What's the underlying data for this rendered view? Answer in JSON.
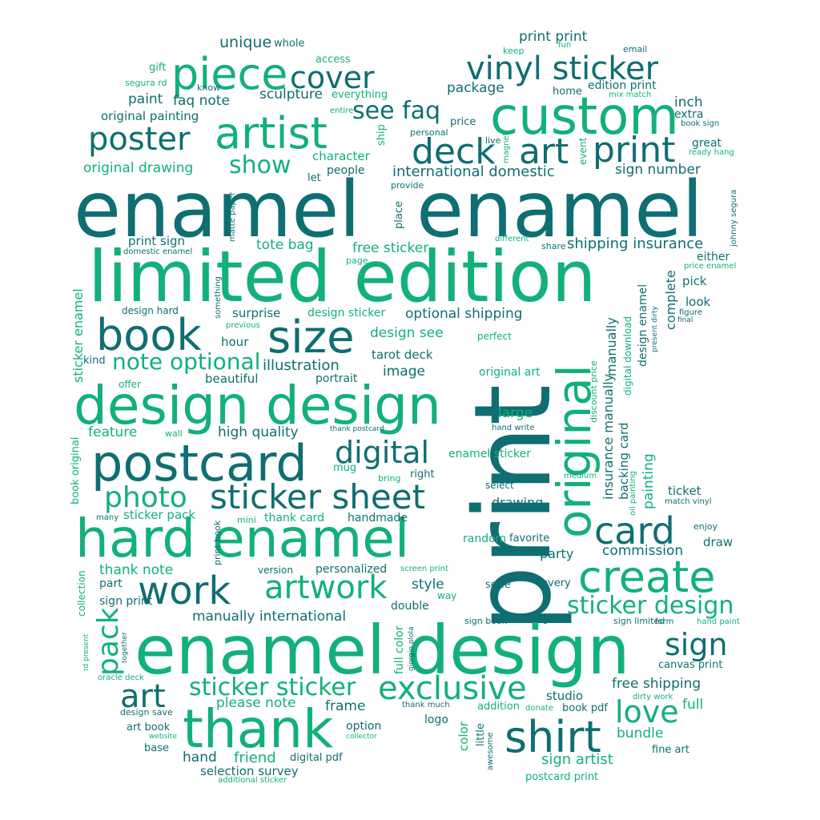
{
  "words": {
    "enamel_1": "enamel",
    "enamel_2": "enamel",
    "limited_edition": "limited edition",
    "print_big": "print",
    "enamel_design": "enamel design",
    "design_design": "design design",
    "hard_enamel": "hard enamel",
    "postcard": "postcard",
    "custom": "custom",
    "original": "original",
    "thank": "thank",
    "artist": "artist",
    "piece": "piece",
    "create": "create",
    "shirt": "shirt",
    "size": "size",
    "book": "book",
    "work": "work",
    "vinyl_sticker": "vinyl sticker",
    "print_2": "print",
    "deck": "deck",
    "art_1": "art",
    "cover": "cover",
    "poster": "poster",
    "card": "card",
    "exclusive": "exclusive",
    "sticker_sheet": "sticker sheet",
    "artwork": "artwork",
    "digital": "digital",
    "photo": "photo",
    "sticker_design": "sticker design",
    "sticker_sticker": "sticker sticker",
    "art_2": "art",
    "love": "love",
    "sign": "sign",
    "pack": "pack",
    "note_optional": "note optional",
    "see_faq": "see faq",
    "show": "show",
    "print_print": "print print",
    "unique": "unique",
    "whole": "whole",
    "gift": "gift",
    "access": "access",
    "keep": "keep",
    "fun": "fun",
    "email": "email",
    "segura_rd": "segura rd",
    "know": "know",
    "paint": "paint",
    "faq_note": "faq note",
    "sculpture": "sculpture",
    "everything": "everything",
    "package": "package",
    "home": "home",
    "edition_print": "edition print",
    "mix_match": "mix match",
    "inch": "inch",
    "extra": "extra",
    "book_sign": "book sign",
    "original_painting": "original painting",
    "entire": "entire",
    "personal": "personal",
    "price": "price",
    "ship": "ship",
    "live": "live",
    "magnet": "magnet",
    "event": "event",
    "great": "great",
    "ready_hang": "ready hang",
    "character": "character",
    "original_drawing": "original drawing",
    "let": "let",
    "people": "people",
    "international_domestic": "international domestic",
    "sign_number": "sign number",
    "provide": "provide",
    "matte_paper": "matte paper",
    "place": "place",
    "johnny_segura": "johnny segura",
    "print_sign": "print sign",
    "domestic_enamel": "domestic enamel",
    "tote_bag": "tote bag",
    "free_sticker": "free sticker",
    "different": "different",
    "share": "share",
    "shipping_insurance": "shipping insurance",
    "either": "either",
    "price_enamel": "price enamel",
    "page": "page",
    "sticker_enamel": "sticker enamel",
    "something": "something",
    "complete": "complete",
    "pick": "pick",
    "design_hard": "design hard",
    "surprise": "surprise",
    "design_sticker": "design sticker",
    "optional_shipping": "optional shipping",
    "look": "look",
    "figure": "figure",
    "final": "final",
    "previous": "previous",
    "present_dirty": "present dirty",
    "design_see": "design see",
    "perfect": "perfect",
    "kind": "kind",
    "hour": "hour",
    "illustration": "illustration",
    "tarot_deck": "tarot deck",
    "design_enamel": "design enamel",
    "manually": "manually",
    "digital_download": "digital download",
    "beautiful": "beautiful",
    "portrait": "portrait",
    "image": "image",
    "original_art": "original art",
    "offer": "offer",
    "discount_price": "discount price",
    "large": "large",
    "insurance_manually": "insurance manually",
    "feature": "feature",
    "wall": "wall",
    "high_quality": "high quality",
    "thank_postcard": "thank postcard",
    "hand_write": "hand write",
    "backing_card": "backing card",
    "book_original": "book original",
    "mug": "mug",
    "enamel_sticker": "enamel sticker",
    "medium": "medium",
    "bring": "bring",
    "right": "right",
    "select": "select",
    "painting": "painting",
    "oil_painting": "oil painting",
    "ticket": "ticket",
    "match_vinyl": "match vinyl",
    "many": "many",
    "sticker_pack": "sticker pack",
    "drawing": "drawing",
    "print_book": "print book",
    "mini": "mini",
    "thank_card": "thank card",
    "handmade": "handmade",
    "enjoy": "enjoy",
    "random": "random",
    "favorite": "favorite",
    "draw": "draw",
    "party": "party",
    "commission": "commission",
    "thank_note": "thank note",
    "version": "version",
    "personalized": "personalized",
    "screen_print": "screen print",
    "collection": "collection",
    "part": "part",
    "style": "style",
    "way": "way",
    "serie": "serie",
    "every": "every",
    "sign_print": "sign print",
    "manually_international": "manually international",
    "double": "double",
    "sign_book": "sign book",
    "glass": "glass",
    "sign_limited": "sign limited",
    "form": "form",
    "hand_paint": "hand paint",
    "rd_present": "rd present",
    "together": "together",
    "full_color": "full color",
    "giorgio_plola": "giorgio plola",
    "canvas_print": "canvas print",
    "oracle_deck": "oracle deck",
    "free_shipping": "free shipping",
    "studio": "studio",
    "dirty_work": "dirty work",
    "please_note": "please note",
    "frame": "frame",
    "thank_much": "thank much",
    "addition": "addition",
    "donate": "donate",
    "book_pdf": "book pdf",
    "full": "full",
    "design_save": "design save",
    "art_book": "art book",
    "option": "option",
    "logo": "logo",
    "collector": "collector",
    "website": "website",
    "color": "color",
    "little": "little",
    "awesome": "awesome",
    "bundle": "bundle",
    "base": "base",
    "hand": "hand",
    "friend": "friend",
    "digital_pdf": "digital pdf",
    "sign_artist": "sign artist",
    "fine_art": "fine art",
    "selection_survey": "selection survey",
    "additional_sticker": "additional sticker",
    "postcard_print": "postcard print"
  },
  "colors": {
    "teal": "#0f6e72",
    "green": "#12b07a",
    "mid": "#14927a",
    "cyan": "#1a8a86"
  }
}
